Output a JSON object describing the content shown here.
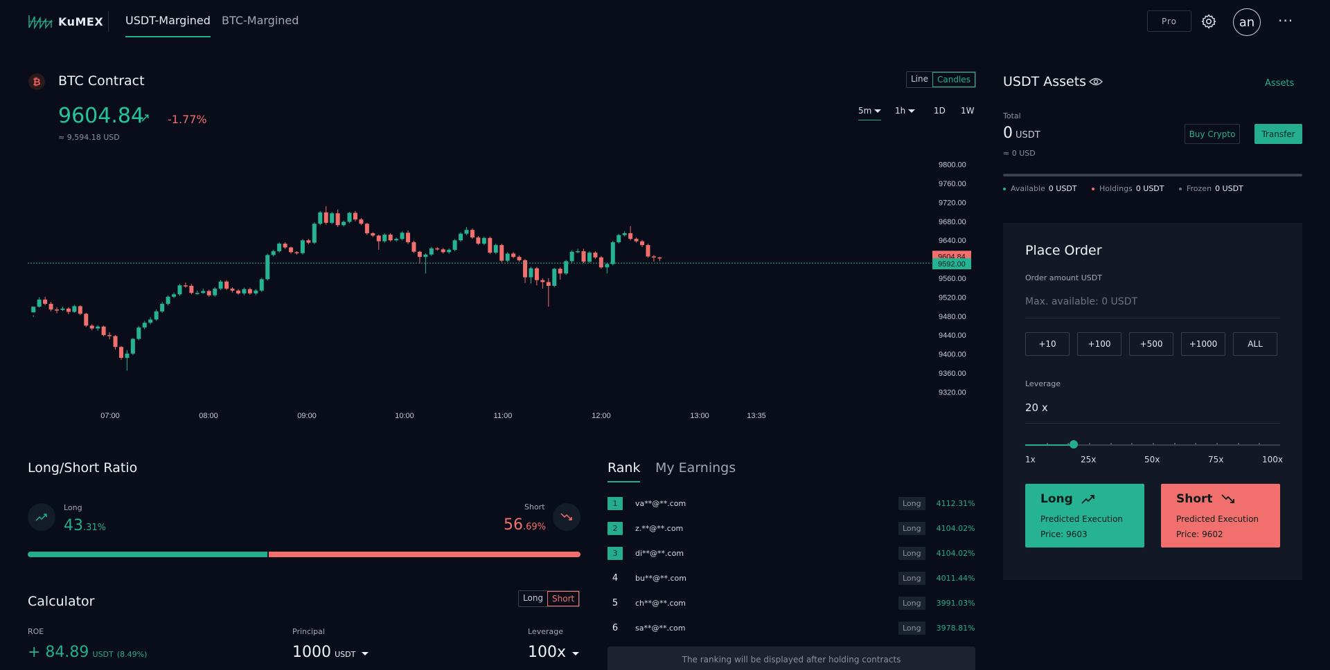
{
  "header": {
    "logo_text": "KuMEX",
    "tabs": [
      {
        "label": "USDT-Margined",
        "active": true
      },
      {
        "label": "BTC-Margined",
        "active": false
      }
    ],
    "pro_label": "Pro",
    "avatar_text": "an",
    "more_label": "···"
  },
  "contract": {
    "title": "BTC Contract",
    "price": "9604.84",
    "change": "-1.77%",
    "usd_value": "≈ 9,594.18 USD",
    "chart_modes": [
      "Line",
      "Candles"
    ],
    "active_mode": "Candles",
    "intervals": [
      "5m",
      "1h",
      "1D",
      "1W"
    ],
    "active_interval": "5m"
  },
  "chart_data": {
    "type": "candlestick",
    "y_ticks": [
      "9800.00",
      "9760.00",
      "9720.00",
      "9680.00",
      "9640.00",
      "9600.00",
      "9560.00",
      "9520.00",
      "9480.00",
      "9440.00",
      "9400.00",
      "9360.00",
      "9320.00"
    ],
    "ylim": [
      9300,
      9820
    ],
    "x_ticks": [
      "07:00",
      "08:00",
      "09:00",
      "10:00",
      "11:00",
      "12:00",
      "13:00",
      "13:35"
    ],
    "last_price_label": "9604.84",
    "mark_price_label": "9592.00",
    "mark_price": 9592,
    "last_price": 9604.84,
    "colors": {
      "up": "#26b393",
      "down": "#f1706e"
    },
    "candles": [
      [
        9488,
        9500,
        9482,
        9478
      ],
      [
        9500,
        9515,
        9520,
        9498
      ],
      [
        9515,
        9506,
        9521,
        9503
      ],
      [
        9506,
        9494,
        9510,
        9490
      ],
      [
        9494,
        9493,
        9499,
        9486
      ],
      [
        9493,
        9496,
        9500,
        9491
      ],
      [
        9496,
        9489,
        9499,
        9484
      ],
      [
        9489,
        9501,
        9504,
        9487
      ],
      [
        9501,
        9485,
        9503,
        9482
      ],
      [
        9485,
        9460,
        9487,
        9457
      ],
      [
        9460,
        9454,
        9463,
        9450
      ],
      [
        9454,
        9458,
        9461,
        9449
      ],
      [
        9458,
        9440,
        9460,
        9437
      ],
      [
        9440,
        9438,
        9446,
        9431
      ],
      [
        9438,
        9415,
        9440,
        9410
      ],
      [
        9415,
        9392,
        9417,
        9388
      ],
      [
        9392,
        9401,
        9408,
        9365
      ],
      [
        9401,
        9432,
        9434,
        9398
      ],
      [
        9432,
        9456,
        9459,
        9429
      ],
      [
        9456,
        9466,
        9470,
        9452
      ],
      [
        9466,
        9473,
        9478,
        9463
      ],
      [
        9473,
        9490,
        9494,
        9470
      ],
      [
        9490,
        9506,
        9510,
        9487
      ],
      [
        9506,
        9521,
        9524,
        9503
      ],
      [
        9521,
        9526,
        9530,
        9518
      ],
      [
        9526,
        9545,
        9548,
        9523
      ],
      [
        9545,
        9544,
        9551,
        9540
      ],
      [
        9544,
        9529,
        9548,
        9526
      ],
      [
        9529,
        9529,
        9534,
        9525
      ],
      [
        9529,
        9533,
        9538,
        9527
      ],
      [
        9533,
        9524,
        9536,
        9521
      ],
      [
        9524,
        9538,
        9541,
        9521
      ],
      [
        9538,
        9553,
        9556,
        9535
      ],
      [
        9553,
        9538,
        9556,
        9535
      ],
      [
        9538,
        9534,
        9541,
        9530
      ],
      [
        9534,
        9528,
        9537,
        9525
      ],
      [
        9528,
        9537,
        9540,
        9524
      ],
      [
        9537,
        9528,
        9540,
        9525
      ],
      [
        9528,
        9534,
        9537,
        9524
      ],
      [
        9534,
        9558,
        9561,
        9531
      ],
      [
        9558,
        9609,
        9612,
        9555
      ],
      [
        9609,
        9617,
        9620,
        9606
      ],
      [
        9617,
        9633,
        9636,
        9614
      ],
      [
        9633,
        9625,
        9636,
        9622
      ],
      [
        9625,
        9615,
        9627,
        9612
      ],
      [
        9615,
        9613,
        9617,
        9610
      ],
      [
        9613,
        9640,
        9643,
        9610
      ],
      [
        9640,
        9635,
        9643,
        9632
      ],
      [
        9635,
        9675,
        9678,
        9632
      ],
      [
        9675,
        9699,
        9702,
        9672
      ],
      [
        9699,
        9677,
        9712,
        9673
      ],
      [
        9677,
        9697,
        9700,
        9674
      ],
      [
        9697,
        9672,
        9705,
        9668
      ],
      [
        9672,
        9679,
        9682,
        9669
      ],
      [
        9679,
        9698,
        9700,
        9676
      ],
      [
        9698,
        9684,
        9702,
        9680
      ],
      [
        9684,
        9675,
        9687,
        9672
      ],
      [
        9675,
        9655,
        9677,
        9652
      ],
      [
        9655,
        9650,
        9657,
        9647
      ],
      [
        9650,
        9638,
        9652,
        9620
      ],
      [
        9638,
        9652,
        9655,
        9635
      ],
      [
        9652,
        9640,
        9655,
        9637
      ],
      [
        9640,
        9643,
        9646,
        9637
      ],
      [
        9643,
        9656,
        9659,
        9640
      ],
      [
        9656,
        9636,
        9661,
        9632
      ],
      [
        9636,
        9616,
        9639,
        9613
      ],
      [
        9616,
        9605,
        9618,
        9591
      ],
      [
        9605,
        9610,
        9613,
        9570
      ],
      [
        9610,
        9623,
        9626,
        9607
      ],
      [
        9623,
        9621,
        9626,
        9618
      ],
      [
        9621,
        9615,
        9624,
        9612
      ],
      [
        9615,
        9620,
        9623,
        9612
      ],
      [
        9620,
        9640,
        9643,
        9617
      ],
      [
        9640,
        9654,
        9657,
        9637
      ],
      [
        9654,
        9662,
        9668,
        9651
      ],
      [
        9662,
        9646,
        9665,
        9643
      ],
      [
        9646,
        9633,
        9649,
        9630
      ],
      [
        9633,
        9645,
        9648,
        9630
      ],
      [
        9645,
        9614,
        9648,
        9611
      ],
      [
        9614,
        9630,
        9633,
        9611
      ],
      [
        9630,
        9597,
        9633,
        9594
      ],
      [
        9597,
        9612,
        9615,
        9594
      ],
      [
        9612,
        9605,
        9615,
        9602
      ],
      [
        9605,
        9598,
        9608,
        9595
      ],
      [
        9598,
        9562,
        9601,
        9550
      ],
      [
        9562,
        9581,
        9584,
        9549
      ],
      [
        9581,
        9556,
        9584,
        9545
      ],
      [
        9556,
        9552,
        9560,
        9538
      ],
      [
        9552,
        9544,
        9560,
        9500
      ],
      [
        9544,
        9580,
        9582,
        9541
      ],
      [
        9580,
        9570,
        9583,
        9557
      ],
      [
        9570,
        9596,
        9599,
        9567
      ],
      [
        9596,
        9616,
        9619,
        9593
      ],
      [
        9616,
        9617,
        9622,
        9613
      ],
      [
        9617,
        9595,
        9622,
        9592
      ],
      [
        9595,
        9614,
        9617,
        9592
      ],
      [
        9614,
        9604,
        9617,
        9601
      ],
      [
        9604,
        9583,
        9607,
        9580
      ],
      [
        9583,
        9590,
        9593,
        9570
      ],
      [
        9590,
        9636,
        9639,
        9587
      ],
      [
        9636,
        9651,
        9654,
        9633
      ],
      [
        9651,
        9655,
        9659,
        9648
      ],
      [
        9655,
        9643,
        9670,
        9640
      ],
      [
        9643,
        9638,
        9646,
        9635
      ],
      [
        9638,
        9630,
        9641,
        9626
      ],
      [
        9630,
        9606,
        9633,
        9603
      ],
      [
        9606,
        9604,
        9609,
        9595
      ],
      [
        9604,
        9602,
        9605,
        9596
      ]
    ]
  },
  "long_short": {
    "title": "Long/Short Ratio",
    "long_label": "Long",
    "long_int": "43",
    "long_dec": ".31%",
    "short_label": "Short",
    "short_int": "56",
    "short_dec": ".69%",
    "long_ratio": 0.4331
  },
  "calculator": {
    "title": "Calculator",
    "modes": [
      "Long",
      "Short"
    ],
    "active_mode": "Short",
    "roe_label": "ROE",
    "roe_value": "+ 84.89",
    "roe_unit": "USDT",
    "roe_pct": "(8.49%)",
    "principal_label": "Principal",
    "principal_value": "1000",
    "principal_unit": "USDT",
    "leverage_label": "Leverage",
    "leverage_value": "100x"
  },
  "rank": {
    "tabs": [
      "Rank",
      "My Earnings"
    ],
    "rows": [
      {
        "n": "1",
        "email": "va**@**.com",
        "side": "Long",
        "pct": "4112.31%"
      },
      {
        "n": "2",
        "email": "z.**@**.com",
        "side": "Long",
        "pct": "4104.02%"
      },
      {
        "n": "3",
        "email": "di**@**.com",
        "side": "Long",
        "pct": "4104.02%"
      },
      {
        "n": "4",
        "email": "bu**@**.com",
        "side": "Long",
        "pct": "4011.44%"
      },
      {
        "n": "5",
        "email": "ch**@**.com",
        "side": "Long",
        "pct": "3991.03%"
      },
      {
        "n": "6",
        "email": "sa**@**.com",
        "side": "Long",
        "pct": "3978.81%"
      }
    ],
    "footer": "The ranking will be displayed after holding contracts"
  },
  "assets": {
    "title": "USDT Assets",
    "link": "Assets",
    "total_label": "Total",
    "total_value": "0",
    "total_unit": "USDT",
    "total_usd": "≈ 0 USD",
    "buy_label": "Buy Crypto",
    "transfer_label": "Transfer",
    "stats": [
      {
        "label": "Available",
        "value": "0 USDT",
        "color": "#24ae8f"
      },
      {
        "label": "Holdings",
        "value": "0 USDT",
        "color": "#f46f6c"
      },
      {
        "label": "Frozen",
        "value": "0 USDT",
        "color": "#6e7480"
      }
    ]
  },
  "order": {
    "title": "Place Order",
    "amount_label": "Order amount USDT",
    "amount_placeholder": "Max. available: 0 USDT",
    "qty_buttons": [
      "+10",
      "+100",
      "+500",
      "+1000",
      "ALL"
    ],
    "leverage_label": "Leverage",
    "leverage_value": "20 x",
    "leverage_fraction": 0.19,
    "slider_labels": [
      "1x",
      "25x",
      "50x",
      "75x",
      "100x"
    ],
    "long_title": "Long",
    "long_sub": "Predicted Execution",
    "long_price": "Price: 9603",
    "short_title": "Short",
    "short_sub": "Predicted Execution",
    "short_price": "Price: 9602"
  }
}
